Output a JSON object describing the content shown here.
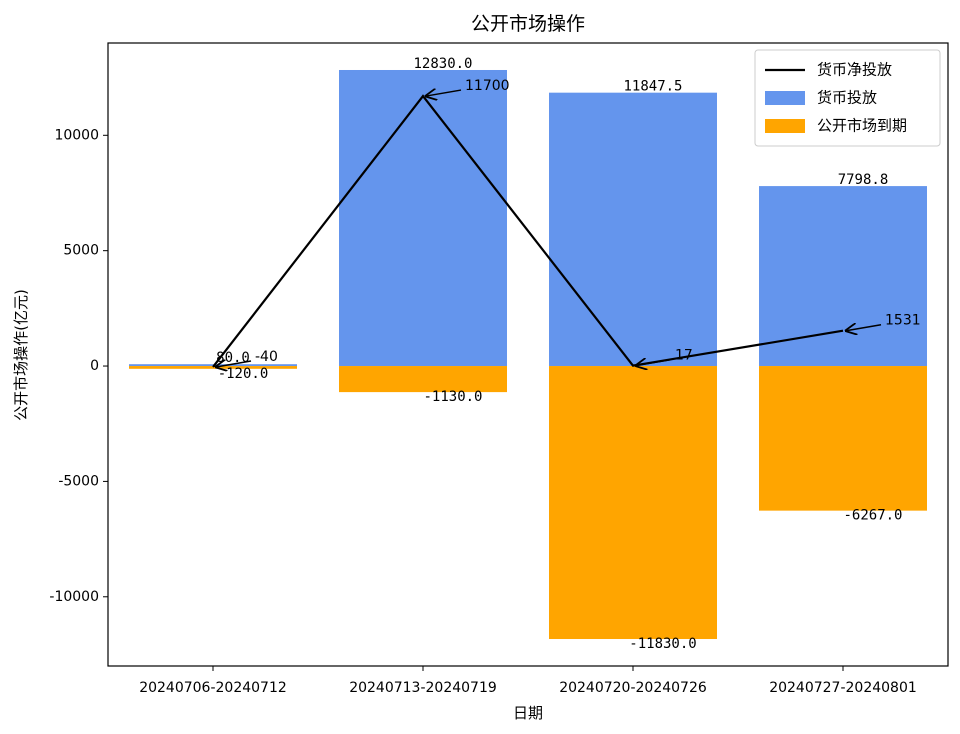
{
  "chart_data": {
    "type": "bar",
    "title": "公开市场操作",
    "xlabel": "日期",
    "ylabel": "公开市场操作(亿元)",
    "categories": [
      "20240706-20240712",
      "20240713-20240719",
      "20240720-20240726",
      "20240727-20240801"
    ],
    "ylim": [
      -13000,
      14000
    ],
    "yticks": [
      -10000,
      -5000,
      0,
      5000,
      10000
    ],
    "ytick_labels": [
      "-10000",
      "-5000",
      "0",
      "5000",
      "10000"
    ],
    "grid": false,
    "legend_position": "top-right",
    "series": [
      {
        "name": "货币净投放",
        "kind": "line",
        "color": "#000000",
        "values": [
          -40,
          11700,
          17,
          1531
        ],
        "labels": [
          "-40",
          "11700",
          "17",
          "1531"
        ]
      },
      {
        "name": "货币投放",
        "kind": "bar",
        "color": "#6495ED",
        "values": [
          80.0,
          12830.0,
          11847.5,
          7798.8
        ],
        "labels": [
          "80.0",
          "12830.0",
          "11847.5",
          "7798.8"
        ]
      },
      {
        "name": "公开市场到期",
        "kind": "bar",
        "color": "#FFA500",
        "values": [
          -120.0,
          -1130.0,
          -11830.0,
          -6267.0
        ],
        "labels": [
          "-120.0",
          "-1130.0",
          "-11830.0",
          "-6267.0"
        ]
      }
    ]
  }
}
